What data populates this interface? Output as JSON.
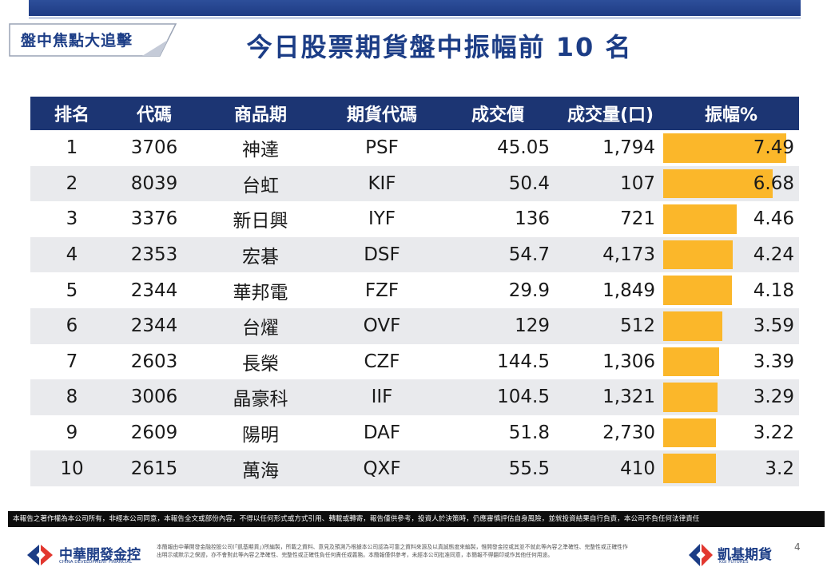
{
  "header": {
    "section_tag": "盤中焦點大追擊",
    "title": "今日股票期貨盤中振幅前 10 名"
  },
  "table": {
    "columns": [
      "排名",
      "代碼",
      "商品期",
      "期貨代碼",
      "成交價",
      "成交量(口)",
      "振幅%"
    ],
    "rows": [
      {
        "rank": "1",
        "code": "3706",
        "name": "神達",
        "futures_code": "PSF",
        "price": "45.05",
        "volume": "1,794",
        "amplitude": "7.49",
        "amplitude_value": 7.49
      },
      {
        "rank": "2",
        "code": "8039",
        "name": "台虹",
        "futures_code": "KIF",
        "price": "50.4",
        "volume": "107",
        "amplitude": "6.68",
        "amplitude_value": 6.68
      },
      {
        "rank": "3",
        "code": "3376",
        "name": "新日興",
        "futures_code": "IYF",
        "price": "136",
        "volume": "721",
        "amplitude": "4.46",
        "amplitude_value": 4.46
      },
      {
        "rank": "4",
        "code": "2353",
        "name": "宏碁",
        "futures_code": "DSF",
        "price": "54.7",
        "volume": "4,173",
        "amplitude": "4.24",
        "amplitude_value": 4.24
      },
      {
        "rank": "5",
        "code": "2344",
        "name": "華邦電",
        "futures_code": "FZF",
        "price": "29.9",
        "volume": "1,849",
        "amplitude": "4.18",
        "amplitude_value": 4.18
      },
      {
        "rank": "6",
        "code": "2344",
        "name": "台燿",
        "futures_code": "OVF",
        "price": "129",
        "volume": "512",
        "amplitude": "3.59",
        "amplitude_value": 3.59
      },
      {
        "rank": "7",
        "code": "2603",
        "name": "長榮",
        "futures_code": "CZF",
        "price": "144.5",
        "volume": "1,306",
        "amplitude": "3.39",
        "amplitude_value": 3.39
      },
      {
        "rank": "8",
        "code": "3006",
        "name": "晶豪科",
        "futures_code": "IIF",
        "price": "104.5",
        "volume": "1,321",
        "amplitude": "3.29",
        "amplitude_value": 3.29
      },
      {
        "rank": "9",
        "code": "2609",
        "name": "陽明",
        "futures_code": "DAF",
        "price": "51.8",
        "volume": "2,730",
        "amplitude": "3.22",
        "amplitude_value": 3.22
      },
      {
        "rank": "10",
        "code": "2615",
        "name": "萬海",
        "futures_code": "QXF",
        "price": "55.5",
        "volume": "410",
        "amplitude": "3.2",
        "amplitude_value": 3.2
      }
    ]
  },
  "footer": {
    "disclaimer": "本報告之著作權為本公司所有，非經本公司同意，本報告全文或部份內容，不得以任何形式或方式引用、轉載或轉寄，報告僅供參考，投資人於決策時，仍應審慎評估自身風險，並就投資結果自行負責，本公司不負任何法律責任",
    "left_logo_name": "中華開發金控",
    "left_logo_en": "CHINA DEVELOPMENT FINANCIAL",
    "fine_print": "本簡報由中華開發金融控股公司(「凱基期貨」)所編製，所載之資料、意見及預測乃根據本公司認為可靠之資料來源及以真誠態度來編製，惟開發金控或其並不就此等內容之準確性、完整性或正確性作出明示或默示之保證，亦不會對此等內容之準確性、完整性或正確性負任何責任或義務。本簡報僅供參考，未經本公司批准同意，本簡報不得翻印或作其他任何用途。",
    "right_logo_name": "凱基期貨",
    "right_logo_en": "KGI FUTURES",
    "page_number": "4"
  },
  "colors": {
    "header_bg": "#1c3573",
    "title": "#1c3d86",
    "bar": "#fbb72a",
    "row_alt": "#e9eaed",
    "disclaimer_bg": "#0d0d0d"
  },
  "chart_data": {
    "type": "table",
    "title": "今日股票期貨盤中振幅前 10 名",
    "categories": [
      "神達",
      "台虹",
      "新日興",
      "宏碁",
      "華邦電",
      "台燿",
      "長榮",
      "晶豪科",
      "陽明",
      "萬海"
    ],
    "series": [
      {
        "values": [
          7.49,
          6.68,
          4.46,
          4.24,
          4.18,
          3.59,
          3.39,
          3.29,
          3.22,
          3.2
        ]
      }
    ]
  }
}
